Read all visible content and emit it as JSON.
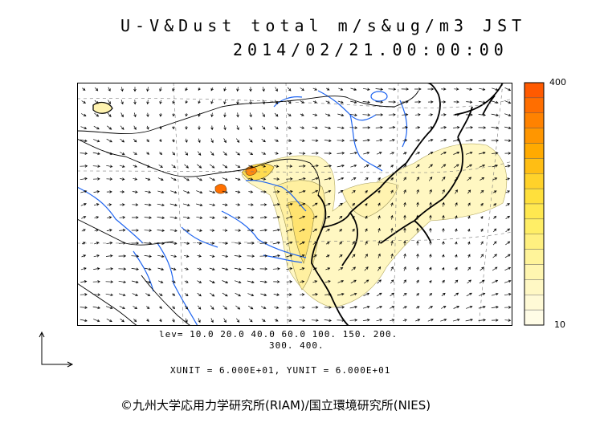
{
  "title_line1": "U-V&Dust total m/s&ug/m3 JST",
  "title_line2": "2014/02/21.00:00:00",
  "colorbar": {
    "max_label": "400",
    "min_label": "10",
    "colors": [
      "#ff5a00",
      "#ff6e00",
      "#ff8200",
      "#ff9600",
      "#ffaa00",
      "#ffbe14",
      "#ffd22a",
      "#ffe03c",
      "#ffe850",
      "#ffee66",
      "#fff080",
      "#fff49a",
      "#fff6b0",
      "#fff8c4",
      "#fffad6",
      "#fffce6"
    ]
  },
  "levels_line1": "lev= 10.0 20.0 40.0 60.0 100. 150. 200.",
  "levels_line2": "300. 400.",
  "units_line": "XUNIT = 6.000E+01, YUNIT = 6.000E+01",
  "copyright": "©九州大学応用力学研究所(RIAM)/国立環境研究所(NIES)"
}
